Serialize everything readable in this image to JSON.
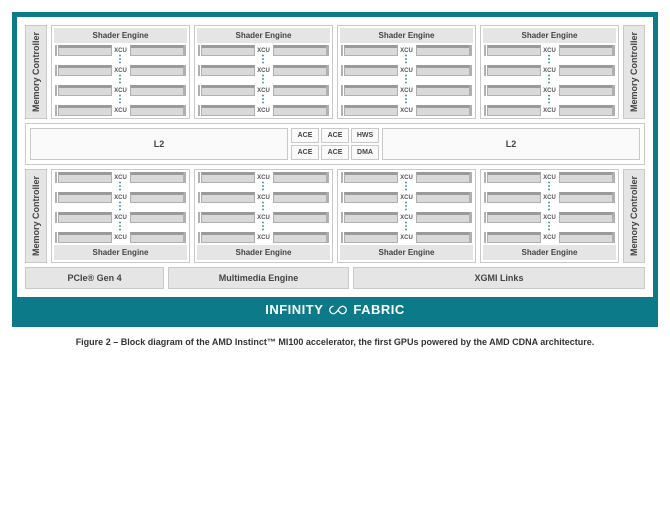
{
  "diagram": {
    "type": "block-diagram",
    "outer_border_color": "#0d7a8a",
    "block_bg": "#e5e5e5",
    "block_border": "#c9c9c9",
    "text_color": "#444",
    "labels": {
      "memory_controller": "Memory Controller",
      "shader_engine": "Shader Engine",
      "xcu": "XCU",
      "l2": "L2",
      "ace": "ACE",
      "hws": "HWS",
      "dma": "DMA",
      "pcie": "PCIe® Gen 4",
      "multimedia": "Multimedia Engine",
      "xgmi": "XGMI Links",
      "infinity": "INFINITY",
      "fabric": "FABRIC"
    },
    "shader_engine_count": 8,
    "xcu_rows_visible_per_engine": 3,
    "cmd_blocks": [
      "ACE",
      "ACE",
      "HWS",
      "ACE",
      "ACE",
      "DMA"
    ],
    "caption": "Figure 2 – Block diagram of the AMD Instinct™ MI100 accelerator, the first GPUs powered by the AMD CDNA architecture."
  }
}
